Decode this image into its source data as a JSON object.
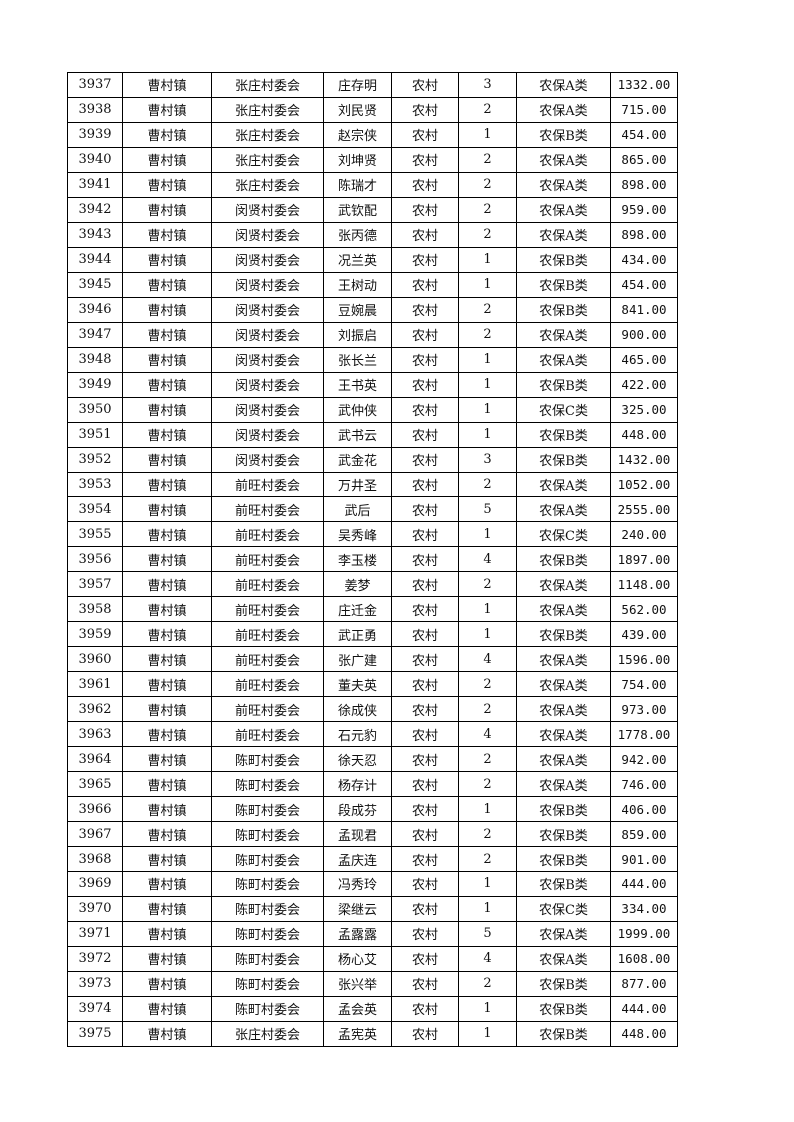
{
  "table": {
    "rows": [
      [
        "3937",
        "曹村镇",
        "张庄村委会",
        "庄存明",
        "农村",
        "3",
        "农保A类",
        "1332.00"
      ],
      [
        "3938",
        "曹村镇",
        "张庄村委会",
        "刘民贤",
        "农村",
        "2",
        "农保A类",
        "715.00"
      ],
      [
        "3939",
        "曹村镇",
        "张庄村委会",
        "赵宗侠",
        "农村",
        "1",
        "农保B类",
        "454.00"
      ],
      [
        "3940",
        "曹村镇",
        "张庄村委会",
        "刘坤贤",
        "农村",
        "2",
        "农保A类",
        "865.00"
      ],
      [
        "3941",
        "曹村镇",
        "张庄村委会",
        "陈瑞才",
        "农村",
        "2",
        "农保A类",
        "898.00"
      ],
      [
        "3942",
        "曹村镇",
        "闵贤村委会",
        "武钦配",
        "农村",
        "2",
        "农保A类",
        "959.00"
      ],
      [
        "3943",
        "曹村镇",
        "闵贤村委会",
        "张丙德",
        "农村",
        "2",
        "农保A类",
        "898.00"
      ],
      [
        "3944",
        "曹村镇",
        "闵贤村委会",
        "况兰英",
        "农村",
        "1",
        "农保B类",
        "434.00"
      ],
      [
        "3945",
        "曹村镇",
        "闵贤村委会",
        "王树动",
        "农村",
        "1",
        "农保B类",
        "454.00"
      ],
      [
        "3946",
        "曹村镇",
        "闵贤村委会",
        "豆婉晨",
        "农村",
        "2",
        "农保B类",
        "841.00"
      ],
      [
        "3947",
        "曹村镇",
        "闵贤村委会",
        "刘振启",
        "农村",
        "2",
        "农保A类",
        "900.00"
      ],
      [
        "3948",
        "曹村镇",
        "闵贤村委会",
        "张长兰",
        "农村",
        "1",
        "农保A类",
        "465.00"
      ],
      [
        "3949",
        "曹村镇",
        "闵贤村委会",
        "王书英",
        "农村",
        "1",
        "农保B类",
        "422.00"
      ],
      [
        "3950",
        "曹村镇",
        "闵贤村委会",
        "武仲侠",
        "农村",
        "1",
        "农保C类",
        "325.00"
      ],
      [
        "3951",
        "曹村镇",
        "闵贤村委会",
        "武书云",
        "农村",
        "1",
        "农保B类",
        "448.00"
      ],
      [
        "3952",
        "曹村镇",
        "闵贤村委会",
        "武金花",
        "农村",
        "3",
        "农保B类",
        "1432.00"
      ],
      [
        "3953",
        "曹村镇",
        "前旺村委会",
        "万井圣",
        "农村",
        "2",
        "农保A类",
        "1052.00"
      ],
      [
        "3954",
        "曹村镇",
        "前旺村委会",
        "武后",
        "农村",
        "5",
        "农保A类",
        "2555.00"
      ],
      [
        "3955",
        "曹村镇",
        "前旺村委会",
        "吴秀峰",
        "农村",
        "1",
        "农保C类",
        "240.00"
      ],
      [
        "3956",
        "曹村镇",
        "前旺村委会",
        "李玉楼",
        "农村",
        "4",
        "农保B类",
        "1897.00"
      ],
      [
        "3957",
        "曹村镇",
        "前旺村委会",
        "姜梦",
        "农村",
        "2",
        "农保A类",
        "1148.00"
      ],
      [
        "3958",
        "曹村镇",
        "前旺村委会",
        "庄迁金",
        "农村",
        "1",
        "农保A类",
        "562.00"
      ],
      [
        "3959",
        "曹村镇",
        "前旺村委会",
        "武正勇",
        "农村",
        "1",
        "农保B类",
        "439.00"
      ],
      [
        "3960",
        "曹村镇",
        "前旺村委会",
        "张广建",
        "农村",
        "4",
        "农保A类",
        "1596.00"
      ],
      [
        "3961",
        "曹村镇",
        "前旺村委会",
        "董夫英",
        "农村",
        "2",
        "农保A类",
        "754.00"
      ],
      [
        "3962",
        "曹村镇",
        "前旺村委会",
        "徐成侠",
        "农村",
        "2",
        "农保A类",
        "973.00"
      ],
      [
        "3963",
        "曹村镇",
        "前旺村委会",
        "石元豹",
        "农村",
        "4",
        "农保A类",
        "1778.00"
      ],
      [
        "3964",
        "曹村镇",
        "陈町村委会",
        "徐天忍",
        "农村",
        "2",
        "农保A类",
        "942.00"
      ],
      [
        "3965",
        "曹村镇",
        "陈町村委会",
        "杨存计",
        "农村",
        "2",
        "农保A类",
        "746.00"
      ],
      [
        "3966",
        "曹村镇",
        "陈町村委会",
        "段成芬",
        "农村",
        "1",
        "农保B类",
        "406.00"
      ],
      [
        "3967",
        "曹村镇",
        "陈町村委会",
        "孟现君",
        "农村",
        "2",
        "农保B类",
        "859.00"
      ],
      [
        "3968",
        "曹村镇",
        "陈町村委会",
        "孟庆连",
        "农村",
        "2",
        "农保B类",
        "901.00"
      ],
      [
        "3969",
        "曹村镇",
        "陈町村委会",
        "冯秀玲",
        "农村",
        "1",
        "农保B类",
        "444.00"
      ],
      [
        "3970",
        "曹村镇",
        "陈町村委会",
        "梁继云",
        "农村",
        "1",
        "农保C类",
        "334.00"
      ],
      [
        "3971",
        "曹村镇",
        "陈町村委会",
        "孟露露",
        "农村",
        "5",
        "农保A类",
        "1999.00"
      ],
      [
        "3972",
        "曹村镇",
        "陈町村委会",
        "杨心艾",
        "农村",
        "4",
        "农保A类",
        "1608.00"
      ],
      [
        "3973",
        "曹村镇",
        "陈町村委会",
        "张兴举",
        "农村",
        "2",
        "农保B类",
        "877.00"
      ],
      [
        "3974",
        "曹村镇",
        "陈町村委会",
        "孟会英",
        "农村",
        "1",
        "农保B类",
        "444.00"
      ],
      [
        "3975",
        "曹村镇",
        "张庄村委会",
        "孟宪英",
        "农村",
        "1",
        "农保B类",
        "448.00"
      ]
    ]
  }
}
